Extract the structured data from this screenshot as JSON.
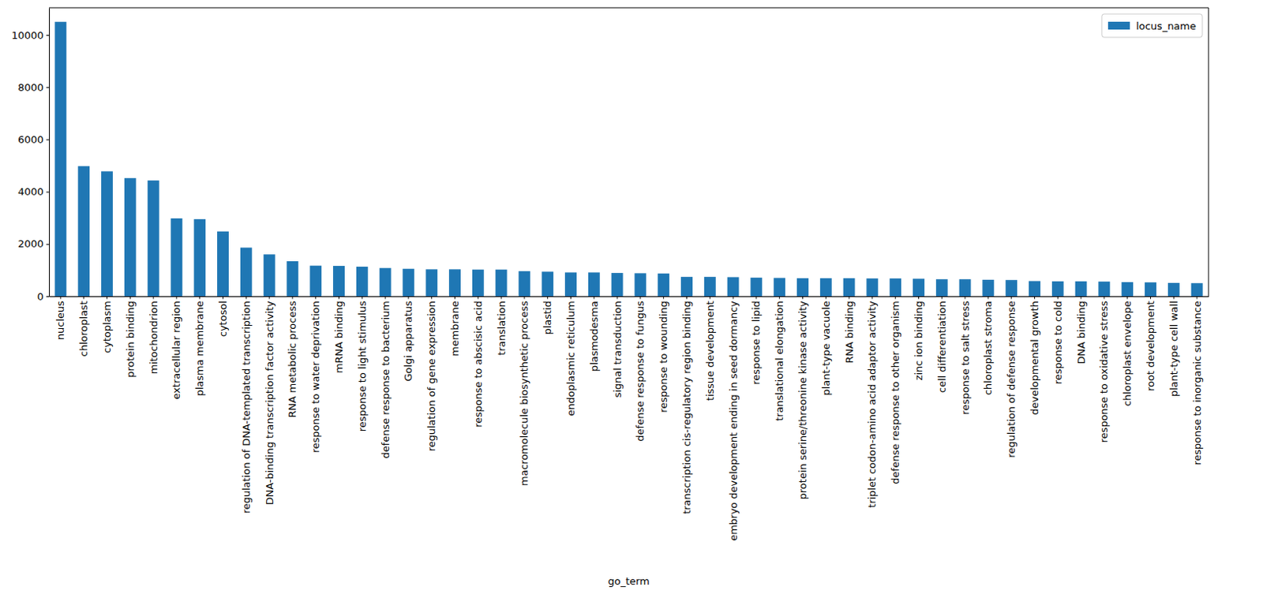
{
  "chart_data": {
    "type": "bar",
    "xlabel": "go_term",
    "categories": [
      "nucleus",
      "chloroplast",
      "cytoplasm",
      "protein binding",
      "mitochondrion",
      "extracellular region",
      "plasma membrane",
      "cytosol",
      "regulation of DNA-templated transcription",
      "DNA-binding transcription factor activity",
      "RNA metabolic process",
      "response to water deprivation",
      "mRNA binding",
      "response to light stimulus",
      "defense response to bacterium",
      "Golgi apparatus",
      "regulation of gene expression",
      "membrane",
      "response to abscisic acid",
      "translation",
      "macromolecule biosynthetic process",
      "plastid",
      "endoplasmic reticulum",
      "plasmodesma",
      "signal transduction",
      "defense response to fungus",
      "response to wounding",
      "transcription cis-regulatory region binding",
      "tissue development",
      "embryo development ending in seed dormancy",
      "response to lipid",
      "translational elongation",
      "protein serine/threonine kinase activity",
      "plant-type vacuole",
      "RNA binding",
      "triplet codon-amino acid adaptor activity",
      "defense response to other organism",
      "zinc ion binding",
      "cell differentiation",
      "response to salt stress",
      "chloroplast stroma",
      "regulation of defense response",
      "developmental growth",
      "response to cold",
      "DNA binding",
      "response to oxidative stress",
      "chloroplast envelope",
      "root development",
      "plant-type cell wall",
      "response to inorganic substance"
    ],
    "series": [
      {
        "name": "locus_name",
        "color": "#1f77b4",
        "values": [
          10500,
          4980,
          4780,
          4520,
          4430,
          2980,
          2950,
          2480,
          1860,
          1600,
          1340,
          1170,
          1160,
          1130,
          1080,
          1050,
          1030,
          1030,
          1020,
          1020,
          960,
          940,
          910,
          910,
          890,
          880,
          870,
          740,
          740,
          730,
          710,
          700,
          690,
          690,
          690,
          680,
          680,
          670,
          650,
          650,
          630,
          620,
          580,
          570,
          570,
          560,
          540,
          530,
          510,
          500
        ]
      }
    ],
    "ylim": [
      0,
      11040
    ],
    "yticks": [
      0,
      2000,
      4000,
      6000,
      8000,
      10000
    ],
    "legend": "upper right"
  }
}
